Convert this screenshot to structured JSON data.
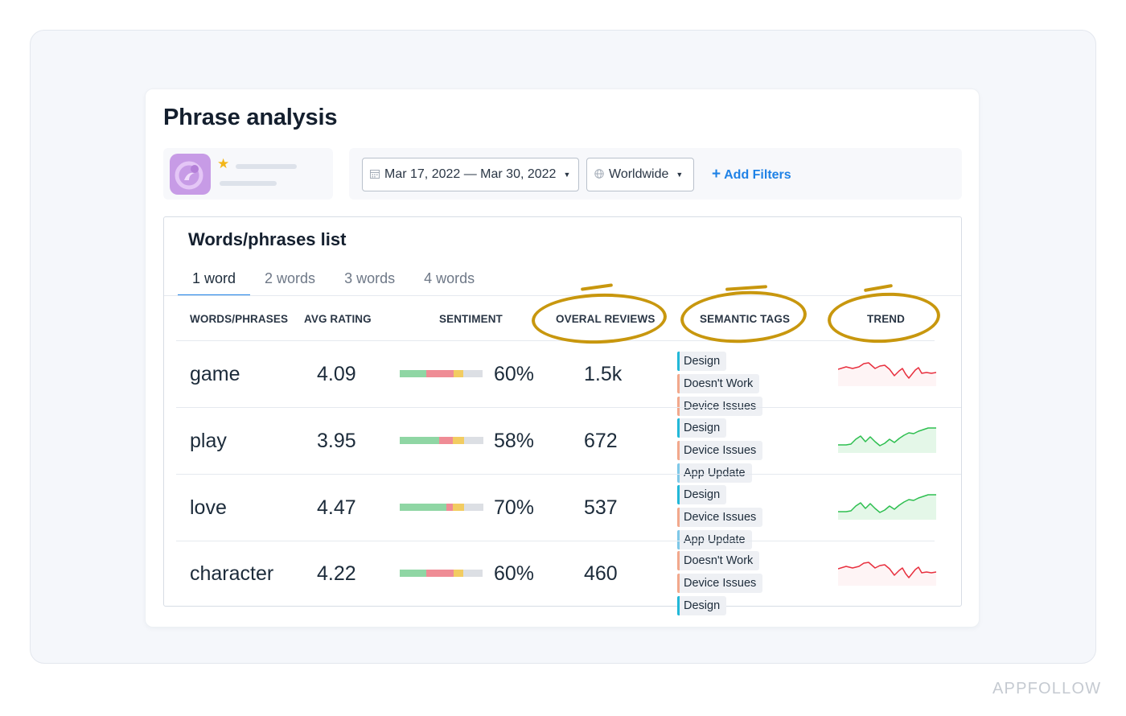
{
  "page": {
    "title": "Phrase analysis",
    "watermark": "APPFOLLOW"
  },
  "filters": {
    "date_range": "Mar 17, 2022 — Mar 30, 2022",
    "region": "Worldwide",
    "add_filters_label": "Add Filters"
  },
  "list": {
    "title": "Words/phrases list",
    "tabs": [
      {
        "label": "1 word",
        "active": true
      },
      {
        "label": "2 words",
        "active": false
      },
      {
        "label": "3 words",
        "active": false
      },
      {
        "label": "4 words",
        "active": false
      }
    ],
    "headers": {
      "words": "WORDS/PHRASES",
      "rating": "AVG RATING",
      "sentiment": "SENTIMENT",
      "reviews": "OVERAL REVIEWS",
      "tags": "SEMANTIC TAGS",
      "trend": "TREND"
    },
    "rows": [
      {
        "word": "game",
        "rating": "4.09",
        "sentiment": "60%",
        "reviews": "1.5k",
        "sentiment_split": {
          "positive": 0.32,
          "negative": 0.33,
          "neutral": 0.12,
          "empty": 0.23
        },
        "tags": [
          {
            "label": "Design",
            "kind": "design"
          },
          {
            "label": "Doesn't Work",
            "kind": "issue"
          },
          {
            "label": "Device Issues",
            "kind": "issue"
          }
        ],
        "trend": "down"
      },
      {
        "word": "play",
        "rating": "3.95",
        "sentiment": "58%",
        "reviews": "672",
        "sentiment_split": {
          "positive": 0.47,
          "negative": 0.17,
          "neutral": 0.13,
          "empty": 0.23
        },
        "tags": [
          {
            "label": "Design",
            "kind": "design"
          },
          {
            "label": "Device Issues",
            "kind": "issue"
          },
          {
            "label": "App Update",
            "kind": "update"
          }
        ],
        "trend": "up"
      },
      {
        "word": "love",
        "rating": "4.47",
        "sentiment": "70%",
        "reviews": "537",
        "sentiment_split": {
          "positive": 0.56,
          "negative": 0.08,
          "neutral": 0.13,
          "empty": 0.23
        },
        "tags": [
          {
            "label": "Design",
            "kind": "design"
          },
          {
            "label": "Device Issues",
            "kind": "issue"
          },
          {
            "label": "App Update",
            "kind": "update"
          }
        ],
        "trend": "up"
      },
      {
        "word": "character",
        "rating": "4.22",
        "sentiment": "60%",
        "reviews": "460",
        "sentiment_split": {
          "positive": 0.32,
          "negative": 0.33,
          "neutral": 0.12,
          "empty": 0.23
        },
        "tags": [
          {
            "label": "Doesn't Work",
            "kind": "issue"
          },
          {
            "label": "Device Issues",
            "kind": "issue"
          },
          {
            "label": "Design",
            "kind": "design"
          }
        ],
        "trend": "down"
      }
    ]
  },
  "icons": {
    "app": "app-logo-icon",
    "star": "star-icon",
    "calendar": "calendar-icon",
    "globe": "globe-icon",
    "caret": "caret-down-icon",
    "plus": "plus-icon"
  },
  "colors": {
    "accent": "#1f82e6",
    "positive": "#8fd6a4",
    "negative": "#ef8c95",
    "neutral": "#f2cc61",
    "empty": "#dcdfe4",
    "tag_design": "#22b8d8",
    "tag_issue": "#f2a88c",
    "tag_update": "#7fc8e8",
    "trend_up": "#2ebf50",
    "trend_down": "#e8303f",
    "annotation": "#c8970e"
  }
}
